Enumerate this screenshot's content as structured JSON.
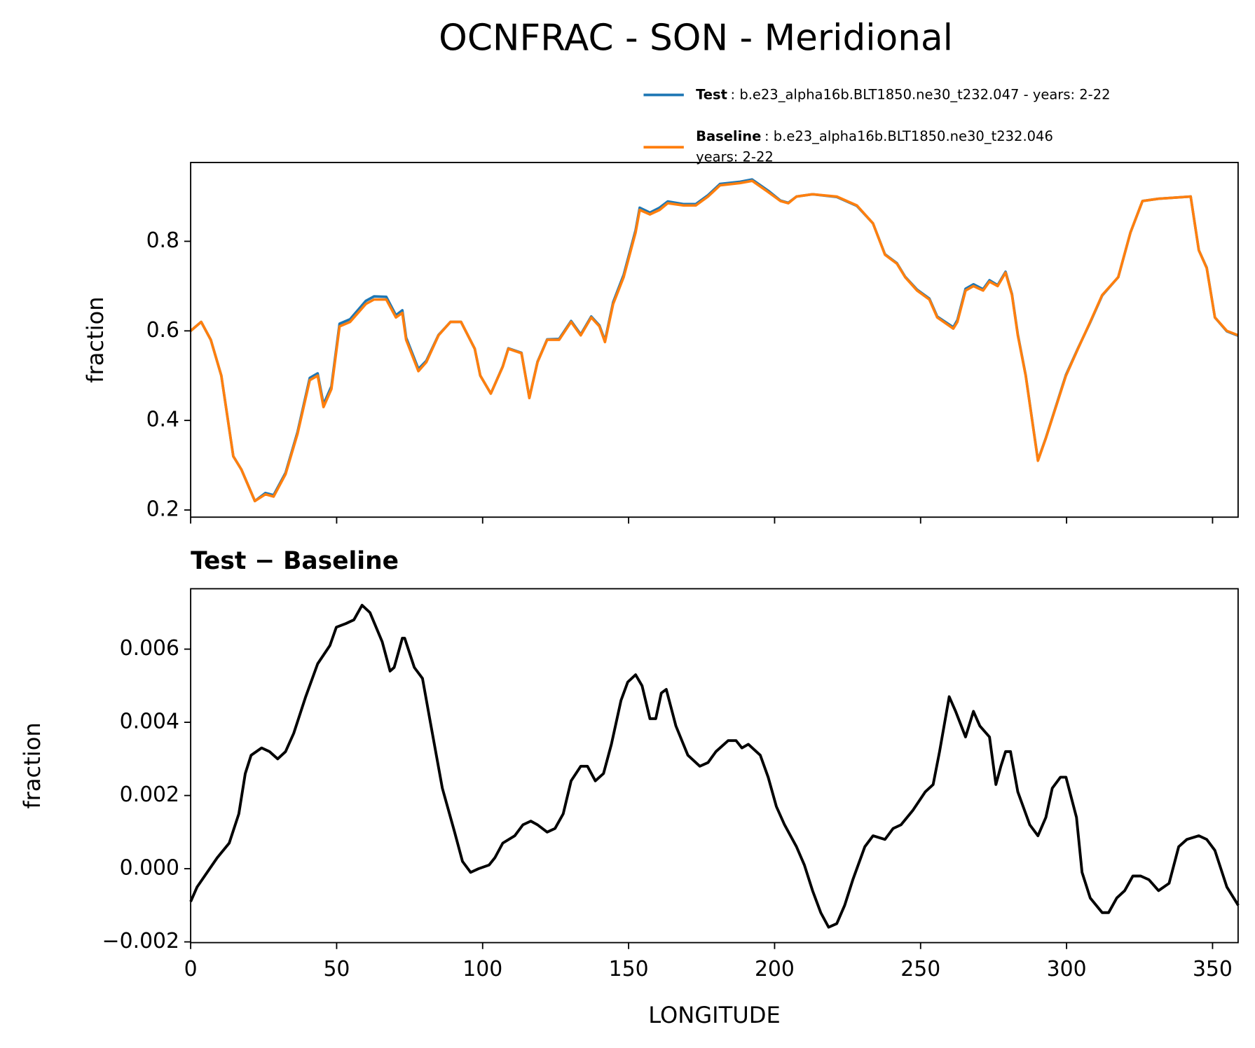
{
  "title": "OCNFRAC - SON - Meridional",
  "chart_data": [
    {
      "type": "line",
      "ylabel": "fraction",
      "x": [
        0,
        3.6,
        6.9,
        10.5,
        14.6,
        17.4,
        22,
        25.6,
        28.4,
        32.5,
        36.6,
        40.8,
        43.5,
        45.5,
        48.2,
        51,
        54.6,
        60,
        62.8,
        67,
        70.3,
        72.5,
        73.8,
        78,
        80.7,
        84.9,
        89,
        92.6,
        97.3,
        99.2,
        102.8,
        106.9,
        108.8,
        113.3,
        116,
        118.8,
        122.1,
        126.2,
        130.3,
        133.6,
        137.2,
        140,
        141.9,
        144.7,
        148.3,
        152.4,
        153.8,
        157.3,
        160.6,
        163.4,
        168.9,
        173,
        177.2,
        181.3,
        188.2,
        192.3,
        197.8,
        202,
        204.7,
        207.5,
        213,
        221.3,
        228.2,
        233.7,
        237.8,
        241.9,
        244.7,
        248.8,
        253,
        255.7,
        261.2,
        262.6,
        265.4,
        268.1,
        271.4,
        273.6,
        276.4,
        279.1,
        281.3,
        283.3,
        286,
        290.2,
        292.9,
        299.8,
        303.9,
        308.1,
        312.2,
        317.7,
        321.9,
        326,
        331.5,
        342.5,
        345.3,
        348,
        350.8,
        354.9,
        358.8
      ],
      "series": [
        {
          "name": "Test",
          "description": [
            ": b.e23_alpha16b.BLT1850.ne30_t232.047 - years: 2-22"
          ],
          "color": "#1f77b4",
          "values": [
            0.6,
            0.62,
            0.58,
            0.5,
            0.32,
            0.29,
            0.22,
            0.238,
            0.233,
            0.283,
            0.374,
            0.495,
            0.505,
            0.436,
            0.476,
            0.616,
            0.626,
            0.667,
            0.677,
            0.676,
            0.635,
            0.646,
            0.585,
            0.515,
            0.533,
            0.591,
            0.62,
            0.62,
            0.56,
            0.5,
            0.46,
            0.521,
            0.561,
            0.551,
            0.451,
            0.531,
            0.581,
            0.582,
            0.622,
            0.592,
            0.632,
            0.612,
            0.578,
            0.664,
            0.725,
            0.825,
            0.875,
            0.864,
            0.875,
            0.889,
            0.883,
            0.883,
            0.903,
            0.928,
            0.933,
            0.938,
            0.913,
            0.891,
            0.886,
            0.9,
            0.905,
            0.899,
            0.879,
            0.84,
            0.771,
            0.751,
            0.721,
            0.692,
            0.672,
            0.632,
            0.608,
            0.624,
            0.694,
            0.704,
            0.693,
            0.713,
            0.702,
            0.732,
            0.682,
            0.592,
            0.501,
            0.311,
            0.361,
            0.502,
            0.561,
            0.619,
            0.679,
            0.72,
            0.82,
            0.89,
            0.895,
            0.9,
            0.78,
            0.741,
            0.63,
            0.599,
            0.589
          ]
        },
        {
          "name": "Baseline",
          "description": [
            ": b.e23_alpha16b.BLT1850.ne30_t232.046",
            "years: 2-22"
          ],
          "color": "#ff7f0e",
          "values": [
            0.6,
            0.62,
            0.58,
            0.5,
            0.32,
            0.29,
            0.22,
            0.235,
            0.23,
            0.28,
            0.37,
            0.49,
            0.5,
            0.43,
            0.47,
            0.61,
            0.62,
            0.66,
            0.67,
            0.67,
            0.63,
            0.64,
            0.58,
            0.51,
            0.53,
            0.59,
            0.62,
            0.62,
            0.56,
            0.5,
            0.46,
            0.52,
            0.56,
            0.55,
            0.45,
            0.53,
            0.58,
            0.58,
            0.62,
            0.59,
            0.63,
            0.61,
            0.575,
            0.66,
            0.72,
            0.82,
            0.87,
            0.86,
            0.87,
            0.885,
            0.88,
            0.88,
            0.9,
            0.925,
            0.93,
            0.935,
            0.91,
            0.89,
            0.885,
            0.9,
            0.905,
            0.9,
            0.88,
            0.84,
            0.77,
            0.75,
            0.72,
            0.69,
            0.67,
            0.63,
            0.605,
            0.62,
            0.69,
            0.7,
            0.69,
            0.71,
            0.7,
            0.73,
            0.68,
            0.59,
            0.5,
            0.31,
            0.36,
            0.5,
            0.56,
            0.62,
            0.68,
            0.72,
            0.82,
            0.89,
            0.895,
            0.9,
            0.78,
            0.74,
            0.63,
            0.6,
            0.59
          ]
        }
      ],
      "xlim": [
        0,
        358.75
      ],
      "xticks": [
        0,
        50,
        100,
        150,
        200,
        250,
        300,
        350
      ],
      "ylim": [
        0.184,
        0.976
      ],
      "yticks": [
        0.2,
        0.4,
        0.6,
        0.8
      ],
      "legend": "upper right"
    },
    {
      "type": "line",
      "title": "Test − Baseline",
      "xlabel": "LONGITUDE",
      "ylabel": "fraction",
      "color": "#000000",
      "x": [
        0,
        2.2,
        9.1,
        13.2,
        16.5,
        18.7,
        20.7,
        24.3,
        27,
        29.8,
        32.5,
        35.3,
        39.4,
        43.5,
        47.7,
        49.9,
        53.2,
        55.9,
        58.7,
        61.4,
        65.6,
        68.3,
        69.7,
        72.5,
        73.3,
        76.6,
        79.4,
        82.1,
        86.2,
        90.4,
        93.1,
        95.9,
        98.6,
        102.2,
        104.2,
        106.9,
        111,
        113.8,
        116.5,
        118.8,
        122.1,
        124.8,
        127.6,
        130.3,
        133.6,
        135.9,
        138.6,
        141.4,
        144.1,
        147.4,
        149.7,
        152.4,
        154.6,
        157.3,
        159.3,
        161.2,
        162.9,
        166.2,
        170.3,
        174.4,
        177.2,
        179.9,
        184.1,
        186.8,
        188.8,
        191,
        195.1,
        197.8,
        200.6,
        203.4,
        207.5,
        210.2,
        213,
        215.8,
        218.5,
        221.3,
        224,
        226.8,
        230.9,
        233.7,
        237.8,
        240.6,
        243.3,
        247.4,
        251.6,
        254.3,
        256.5,
        259.8,
        262,
        265.4,
        268.1,
        270.3,
        273.6,
        275.8,
        277.5,
        279.1,
        280.8,
        283.3,
        287.4,
        290.2,
        292.9,
        295.1,
        297.9,
        299.8,
        303.4,
        305.3,
        308.1,
        312.2,
        314.4,
        317.2,
        319.9,
        322.7,
        325.4,
        328.2,
        331.5,
        335.1,
        338.4,
        341.2,
        345.3,
        348,
        350.8,
        354.9,
        358.8
      ],
      "values": [
        -0.0009,
        -0.0005,
        0.0003,
        0.0007,
        0.0015,
        0.0026,
        0.0031,
        0.0033,
        0.0032,
        0.003,
        0.0032,
        0.0037,
        0.0047,
        0.0056,
        0.0061,
        0.0066,
        0.0067,
        0.0068,
        0.0072,
        0.007,
        0.0062,
        0.0054,
        0.0055,
        0.0063,
        0.0063,
        0.0055,
        0.0052,
        0.004,
        0.0022,
        0.001,
        0.0002,
        -0.0001,
        0,
        0.0001,
        0.0003,
        0.0007,
        0.0009,
        0.0012,
        0.0013,
        0.0012,
        0.001,
        0.0011,
        0.0015,
        0.0024,
        0.0028,
        0.0028,
        0.0024,
        0.0026,
        0.0034,
        0.0046,
        0.0051,
        0.0053,
        0.005,
        0.0041,
        0.0041,
        0.0048,
        0.0049,
        0.0039,
        0.0031,
        0.0028,
        0.0029,
        0.0032,
        0.0035,
        0.0035,
        0.0033,
        0.0034,
        0.0031,
        0.0025,
        0.0017,
        0.0012,
        0.0006,
        0.0001,
        -0.0006,
        -0.0012,
        -0.0016,
        -0.0015,
        -0.001,
        -0.0003,
        0.0006,
        0.0009,
        0.0008,
        0.0011,
        0.0012,
        0.0016,
        0.0021,
        0.0023,
        0.0032,
        0.0047,
        0.0043,
        0.0036,
        0.0043,
        0.0039,
        0.0036,
        0.0023,
        0.0028,
        0.0032,
        0.0032,
        0.0021,
        0.0012,
        0.0009,
        0.0014,
        0.0022,
        0.0025,
        0.0025,
        0.0014,
        -0.0001,
        -0.0008,
        -0.0012,
        -0.0012,
        -0.0008,
        -0.0006,
        -0.0002,
        -0.0002,
        -0.0003,
        -0.0006,
        -0.0004,
        0.0006,
        0.0008,
        0.0009,
        0.0008,
        0.0005,
        -0.0005,
        -0.001
      ],
      "xlim": [
        0,
        358.75
      ],
      "xticks": [
        0,
        50,
        100,
        150,
        200,
        250,
        300,
        350
      ],
      "ylim": [
        -0.00202,
        0.00765
      ],
      "yticks": [
        {
          "value": -0.002,
          "label": "−0.002"
        },
        {
          "value": 0,
          "label": "0.000"
        },
        0.002,
        0.004,
        0.006
      ]
    }
  ]
}
